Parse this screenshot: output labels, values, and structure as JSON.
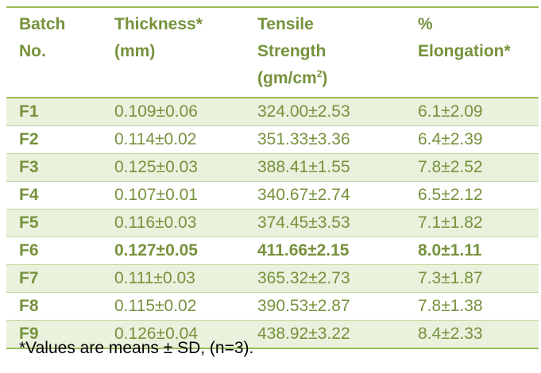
{
  "table": {
    "headers": [
      [
        "Batch",
        "No."
      ],
      [
        "Thickness*",
        "(mm)"
      ],
      [
        "Tensile",
        "Strength",
        "(gm/cm",
        "2",
        ")"
      ],
      [
        "%",
        "Elongation*"
      ]
    ],
    "rows": [
      {
        "batch": "F1",
        "thickness": "0.109±0.06",
        "tensile": "324.00±2.53",
        "elongation": "6.1±2.09"
      },
      {
        "batch": "F2",
        "thickness": "0.114±0.02",
        "tensile": "351.33±3.36",
        "elongation": "6.4±2.39"
      },
      {
        "batch": "F3",
        "thickness": "0.125±0.03",
        "tensile": "388.41±1.55",
        "elongation": "7.8±2.52"
      },
      {
        "batch": "F4",
        "thickness": "0.107±0.01",
        "tensile": "340.67±2.74",
        "elongation": "6.5±2.12"
      },
      {
        "batch": "F5",
        "thickness": "0.116±0.03",
        "tensile": "374.45±3.53",
        "elongation": "7.1±1.82"
      },
      {
        "batch": "F6",
        "thickness": "0.127±0.05",
        "tensile": "411.66±2.15",
        "elongation": "8.0±1.11"
      },
      {
        "batch": "F7",
        "thickness": "0.111±0.03",
        "tensile": "365.32±2.73",
        "elongation": "7.3±1.87"
      },
      {
        "batch": "F8",
        "thickness": "0.115±0.02",
        "tensile": "390.53±2.87",
        "elongation": "7.8±1.38"
      },
      {
        "batch": "F9",
        "thickness": "0.126±0.04",
        "tensile": "438.92±3.22",
        "elongation": "8.4±2.33"
      }
    ]
  },
  "footnote": "*Values are means ± SD, (n=3).",
  "colors": {
    "accent_text": "#76923c",
    "rule": "#9bbb59",
    "row_shade": "#eaf1dd"
  }
}
